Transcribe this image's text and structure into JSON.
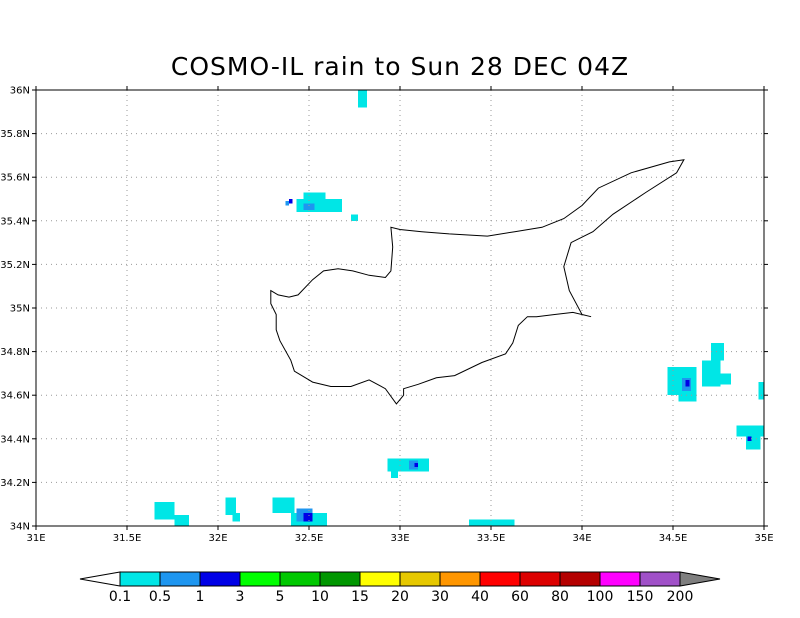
{
  "title": "COSMO-IL rain to Sun 28 DEC 04Z",
  "map": {
    "lon_range": [
      31,
      35
    ],
    "lat_range": [
      34,
      36
    ],
    "lon_ticks": [
      {
        "value": 31,
        "label": "31E"
      },
      {
        "value": 31.5,
        "label": "31.5E"
      },
      {
        "value": 32,
        "label": "32E"
      },
      {
        "value": 32.5,
        "label": "32.5E"
      },
      {
        "value": 33,
        "label": "33E"
      },
      {
        "value": 33.5,
        "label": "33.5E"
      },
      {
        "value": 34,
        "label": "34E"
      },
      {
        "value": 34.5,
        "label": "34.5E"
      },
      {
        "value": 35,
        "label": "35E"
      }
    ],
    "lat_ticks": [
      {
        "value": 34,
        "label": "34N"
      },
      {
        "value": 34.2,
        "label": "34.2N"
      },
      {
        "value": 34.4,
        "label": "34.4N"
      },
      {
        "value": 34.6,
        "label": "34.6N"
      },
      {
        "value": 34.8,
        "label": "34.8N"
      },
      {
        "value": 35,
        "label": "35N"
      },
      {
        "value": 35.2,
        "label": "35.2N"
      },
      {
        "value": 35.4,
        "label": "35.4N"
      },
      {
        "value": 35.6,
        "label": "35.6N"
      },
      {
        "value": 35.8,
        "label": "35.8N"
      },
      {
        "value": 36,
        "label": "36N"
      }
    ],
    "grid": "dotted",
    "coastline": [
      [
        32.29,
        35.08
      ],
      [
        32.33,
        35.06
      ],
      [
        32.39,
        35.05
      ],
      [
        32.44,
        35.06
      ],
      [
        32.52,
        35.13
      ],
      [
        32.58,
        35.17
      ],
      [
        32.66,
        35.18
      ],
      [
        32.74,
        35.17
      ],
      [
        32.83,
        35.15
      ],
      [
        32.92,
        35.14
      ],
      [
        32.95,
        35.17
      ],
      [
        32.96,
        35.28
      ],
      [
        32.95,
        35.37
      ],
      [
        33.0,
        35.36
      ],
      [
        33.12,
        35.35
      ],
      [
        33.27,
        35.34
      ],
      [
        33.48,
        35.33
      ],
      [
        33.63,
        35.35
      ],
      [
        33.78,
        35.37
      ],
      [
        33.9,
        35.41
      ],
      [
        34.0,
        35.47
      ],
      [
        34.09,
        35.55
      ],
      [
        34.27,
        35.62
      ],
      [
        34.48,
        35.67
      ],
      [
        34.56,
        35.68
      ],
      [
        34.52,
        35.62
      ],
      [
        34.35,
        35.53
      ],
      [
        34.17,
        35.43
      ],
      [
        34.06,
        35.35
      ],
      [
        33.94,
        35.3
      ],
      [
        33.9,
        35.19
      ],
      [
        33.93,
        35.08
      ],
      [
        34.0,
        34.97
      ],
      [
        34.05,
        34.96
      ],
      [
        33.95,
        34.98
      ],
      [
        33.85,
        34.97
      ],
      [
        33.75,
        34.96
      ],
      [
        33.7,
        34.96
      ],
      [
        33.65,
        34.92
      ],
      [
        33.62,
        34.84
      ],
      [
        33.58,
        34.79
      ],
      [
        33.45,
        34.75
      ],
      [
        33.3,
        34.69
      ],
      [
        33.2,
        34.68
      ],
      [
        33.1,
        34.65
      ],
      [
        33.02,
        34.63
      ],
      [
        33.02,
        34.6
      ],
      [
        32.98,
        34.56
      ],
      [
        32.92,
        34.63
      ],
      [
        32.83,
        34.67
      ],
      [
        32.73,
        34.64
      ],
      [
        32.62,
        34.64
      ],
      [
        32.52,
        34.66
      ],
      [
        32.42,
        34.71
      ],
      [
        32.4,
        34.76
      ],
      [
        32.34,
        34.85
      ],
      [
        32.32,
        34.9
      ],
      [
        32.32,
        34.97
      ],
      [
        32.29,
        35.02
      ],
      [
        32.29,
        35.08
      ]
    ]
  },
  "rain_cells": [
    {
      "lon": 32.77,
      "lat": 35.92,
      "w": 0.05,
      "h": 0.08,
      "level": 1
    },
    {
      "lon": 32.43,
      "lat": 35.44,
      "w": 0.25,
      "h": 0.06,
      "level": 1
    },
    {
      "lon": 32.47,
      "lat": 35.5,
      "w": 0.12,
      "h": 0.03,
      "level": 1
    },
    {
      "lon": 32.47,
      "lat": 35.45,
      "w": 0.06,
      "h": 0.03,
      "level": 2
    },
    {
      "lon": 32.39,
      "lat": 35.48,
      "w": 0.02,
      "h": 0.02,
      "level": 3
    },
    {
      "lon": 32.37,
      "lat": 35.47,
      "w": 0.02,
      "h": 0.02,
      "level": 2
    },
    {
      "lon": 32.73,
      "lat": 35.4,
      "w": 0.04,
      "h": 0.03,
      "level": 1
    },
    {
      "lon": 31.65,
      "lat": 34.03,
      "w": 0.11,
      "h": 0.08,
      "level": 1
    },
    {
      "lon": 31.76,
      "lat": 34.0,
      "w": 0.08,
      "h": 0.05,
      "level": 1
    },
    {
      "lon": 32.04,
      "lat": 34.05,
      "w": 0.06,
      "h": 0.08,
      "level": 1
    },
    {
      "lon": 32.08,
      "lat": 34.02,
      "w": 0.04,
      "h": 0.04,
      "level": 1
    },
    {
      "lon": 32.3,
      "lat": 34.06,
      "w": 0.12,
      "h": 0.07,
      "level": 1
    },
    {
      "lon": 32.4,
      "lat": 34.0,
      "w": 0.2,
      "h": 0.06,
      "level": 1
    },
    {
      "lon": 32.43,
      "lat": 34.02,
      "w": 0.09,
      "h": 0.06,
      "level": 2
    },
    {
      "lon": 32.47,
      "lat": 34.02,
      "w": 0.05,
      "h": 0.04,
      "level": 3
    },
    {
      "lon": 32.93,
      "lat": 34.25,
      "w": 0.23,
      "h": 0.06,
      "level": 1
    },
    {
      "lon": 32.95,
      "lat": 34.22,
      "w": 0.04,
      "h": 0.03,
      "level": 1
    },
    {
      "lon": 33.05,
      "lat": 34.26,
      "w": 0.05,
      "h": 0.04,
      "level": 2
    },
    {
      "lon": 33.08,
      "lat": 34.27,
      "w": 0.02,
      "h": 0.02,
      "level": 3
    },
    {
      "lon": 33.38,
      "lat": 34.0,
      "w": 0.25,
      "h": 0.03,
      "level": 1
    },
    {
      "lon": 34.47,
      "lat": 34.6,
      "w": 0.16,
      "h": 0.13,
      "level": 1
    },
    {
      "lon": 34.53,
      "lat": 34.57,
      "w": 0.1,
      "h": 0.04,
      "level": 1
    },
    {
      "lon": 34.66,
      "lat": 34.64,
      "w": 0.1,
      "h": 0.12,
      "level": 1
    },
    {
      "lon": 34.71,
      "lat": 34.76,
      "w": 0.07,
      "h": 0.08,
      "level": 1
    },
    {
      "lon": 34.76,
      "lat": 34.65,
      "w": 0.06,
      "h": 0.05,
      "level": 1
    },
    {
      "lon": 34.55,
      "lat": 34.62,
      "w": 0.05,
      "h": 0.06,
      "level": 2
    },
    {
      "lon": 34.57,
      "lat": 34.64,
      "w": 0.02,
      "h": 0.03,
      "level": 3
    },
    {
      "lon": 34.97,
      "lat": 34.58,
      "w": 0.03,
      "h": 0.08,
      "level": 1
    },
    {
      "lon": 34.85,
      "lat": 34.41,
      "w": 0.15,
      "h": 0.05,
      "level": 1
    },
    {
      "lon": 34.9,
      "lat": 34.35,
      "w": 0.08,
      "h": 0.06,
      "level": 1
    },
    {
      "lon": 34.91,
      "lat": 34.39,
      "w": 0.02,
      "h": 0.02,
      "level": 3
    }
  ],
  "colorbar": {
    "under_color": "#ffffff",
    "over_color": "#7f7f7f",
    "colors": [
      "#00e6e6",
      "#1e96f0",
      "#0000e6",
      "#00ff00",
      "#00c800",
      "#009600",
      "#ffff00",
      "#e6c800",
      "#ff9600",
      "#ff0000",
      "#dc0000",
      "#b40000",
      "#ff00ff",
      "#a050c8"
    ],
    "labels": [
      "0.1",
      "0.5",
      "1",
      "3",
      "5",
      "10",
      "15",
      "20",
      "30",
      "40",
      "60",
      "80",
      "100",
      "150",
      "200"
    ]
  }
}
